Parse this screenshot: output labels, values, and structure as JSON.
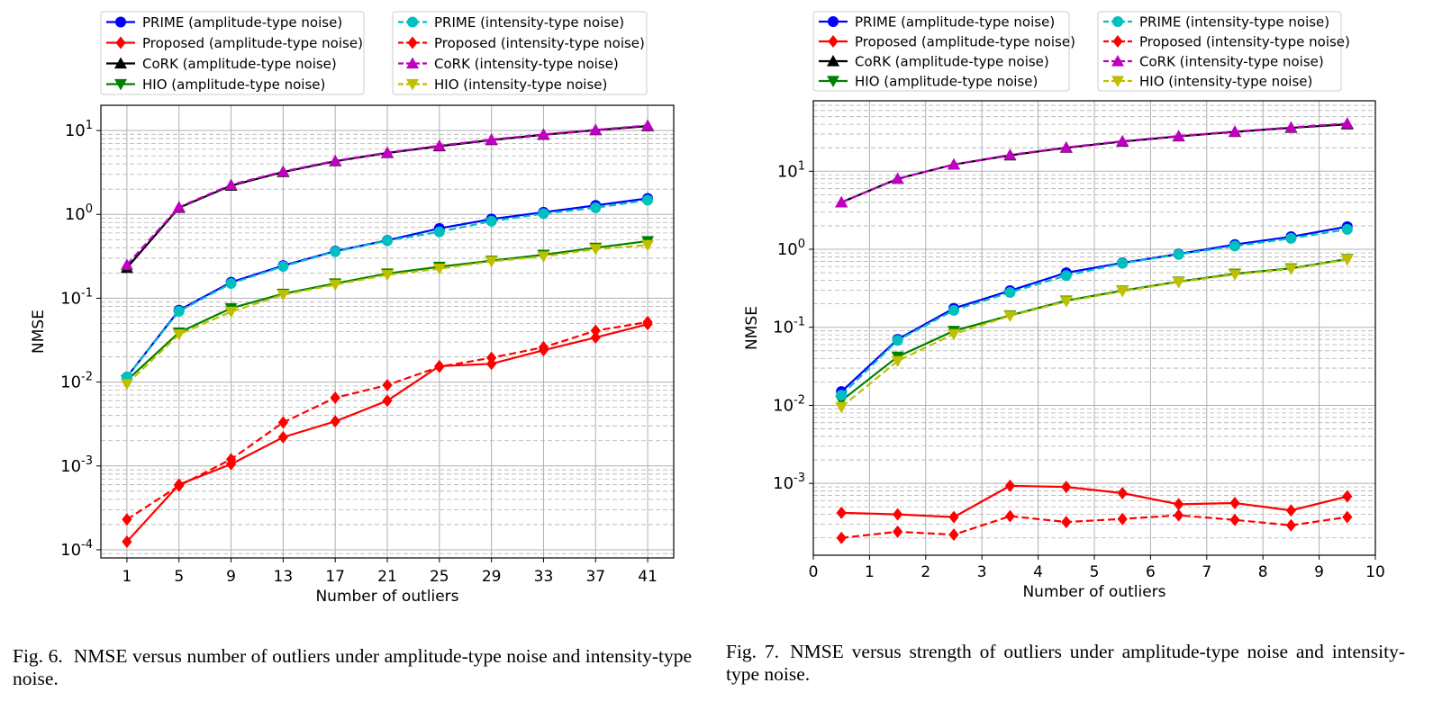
{
  "colors": {
    "prime_amp": "#0000ff",
    "proposed_amp": "#ff0000",
    "cork_amp": "#000000",
    "hio_amp": "#008000",
    "prime_int": "#00bfbf",
    "proposed_int": "#ff0000",
    "cork_int": "#bf00bf",
    "hio_int": "#bfbf00",
    "grid": "#b0b0b0"
  },
  "chart_data": [
    {
      "type": "line",
      "title": "",
      "xlabel": "Number of outliers",
      "ylabel": "NMSE",
      "yscale": "log",
      "ylim": [
        8e-05,
        20
      ],
      "xlim": [
        -0.5,
        10.5
      ],
      "x_categorical": true,
      "categories": [
        "1",
        "5",
        "9",
        "13",
        "17",
        "21",
        "25",
        "29",
        "33",
        "37",
        "41"
      ],
      "ytick_labels": [
        "10^-4",
        "10^-3",
        "10^-2",
        "10^-1",
        "10^0",
        "10^1"
      ],
      "grid": "major and minor",
      "legend_location": "above the plot, two columns",
      "series": [
        {
          "name": "PRIME (amplitude-type noise)",
          "color": "#0000ff",
          "dashed": false,
          "marker": "circle",
          "values": [
            0.0115,
            0.072,
            0.155,
            0.245,
            0.365,
            0.49,
            0.68,
            0.88,
            1.06,
            1.28,
            1.55
          ]
        },
        {
          "name": "Proposed (amplitude-type noise)",
          "color": "#ff0000",
          "dashed": false,
          "marker": "diamond",
          "values": [
            0.000125,
            0.0006,
            0.00105,
            0.0022,
            0.0034,
            0.006,
            0.0155,
            0.0165,
            0.024,
            0.034,
            0.049
          ]
        },
        {
          "name": "CoRK (amplitude-type noise)",
          "color": "#000000",
          "dashed": false,
          "marker": "triangle-up",
          "values": [
            0.23,
            1.2,
            2.2,
            3.2,
            4.3,
            5.4,
            6.5,
            7.7,
            8.9,
            10.1,
            11.3
          ]
        },
        {
          "name": "HIO (amplitude-type noise)",
          "color": "#008000",
          "dashed": false,
          "marker": "triangle-down",
          "values": [
            0.0105,
            0.039,
            0.076,
            0.113,
            0.15,
            0.197,
            0.237,
            0.28,
            0.33,
            0.4,
            0.48
          ]
        },
        {
          "name": "PRIME (intensity-type noise)",
          "color": "#00bfbf",
          "dashed": true,
          "marker": "circle",
          "values": [
            0.0115,
            0.07,
            0.15,
            0.24,
            0.36,
            0.485,
            0.62,
            0.83,
            1.02,
            1.2,
            1.48
          ]
        },
        {
          "name": "Proposed (intensity-type noise)",
          "color": "#ff0000",
          "dashed": true,
          "marker": "diamond",
          "values": [
            0.00023,
            0.00058,
            0.0012,
            0.0033,
            0.0065,
            0.0092,
            0.0152,
            0.0195,
            0.026,
            0.041,
            0.052
          ]
        },
        {
          "name": "CoRK (intensity-type noise)",
          "color": "#bf00bf",
          "dashed": true,
          "marker": "triangle-up",
          "values": [
            0.25,
            1.22,
            2.25,
            3.25,
            4.35,
            5.45,
            6.6,
            7.8,
            9.0,
            10.2,
            11.5
          ]
        },
        {
          "name": "HIO (intensity-type noise)",
          "color": "#bfbf00",
          "dashed": true,
          "marker": "triangle-down",
          "values": [
            0.0095,
            0.037,
            0.069,
            0.11,
            0.145,
            0.19,
            0.225,
            0.275,
            0.315,
            0.385,
            0.43
          ]
        }
      ]
    },
    {
      "type": "line",
      "title": "",
      "xlabel": "Number of outliers",
      "ylabel": "NMSE",
      "yscale": "log",
      "ylim": [
        0.00012,
        80
      ],
      "xlim": [
        0,
        10
      ],
      "x": [
        0.5,
        1.5,
        2.5,
        3.5,
        4.5,
        5.5,
        6.5,
        7.5,
        8.5,
        9.5
      ],
      "xticks": [
        "0",
        "1",
        "2",
        "3",
        "4",
        "5",
        "6",
        "7",
        "8",
        "9",
        "10"
      ],
      "ytick_labels": [
        "10^-3",
        "10^-2",
        "10^-1",
        "10^0",
        "10^1"
      ],
      "grid": "major and minor",
      "legend_location": "above the plot, two columns",
      "series": [
        {
          "name": "PRIME (amplitude-type noise)",
          "color": "#0000ff",
          "dashed": false,
          "marker": "circle",
          "values": [
            0.015,
            0.07,
            0.175,
            0.295,
            0.5,
            0.67,
            0.87,
            1.15,
            1.45,
            1.95
          ]
        },
        {
          "name": "Proposed (amplitude-type noise)",
          "color": "#ff0000",
          "dashed": false,
          "marker": "diamond",
          "values": [
            0.00042,
            0.0004,
            0.00037,
            0.00093,
            0.0009,
            0.00075,
            0.00054,
            0.00056,
            0.00045,
            0.00068
          ]
        },
        {
          "name": "CoRK (amplitude-type noise)",
          "color": "#000000",
          "dashed": false,
          "marker": "triangle-up",
          "values": [
            4.0,
            8.0,
            12.2,
            16.0,
            20.0,
            24.0,
            28.0,
            32.0,
            36.0,
            40.0
          ]
        },
        {
          "name": "HIO (amplitude-type noise)",
          "color": "#008000",
          "dashed": false,
          "marker": "triangle-down",
          "values": [
            0.0115,
            0.042,
            0.09,
            0.142,
            0.22,
            0.295,
            0.385,
            0.485,
            0.57,
            0.75
          ]
        },
        {
          "name": "PRIME (intensity-type noise)",
          "color": "#00bfbf",
          "dashed": true,
          "marker": "circle",
          "values": [
            0.0135,
            0.068,
            0.165,
            0.28,
            0.46,
            0.66,
            0.86,
            1.1,
            1.38,
            1.8
          ]
        },
        {
          "name": "Proposed (intensity-type noise)",
          "color": "#ff0000",
          "dashed": true,
          "marker": "diamond",
          "values": [
            0.0002,
            0.00024,
            0.00022,
            0.00038,
            0.00032,
            0.00035,
            0.00039,
            0.00034,
            0.00029,
            0.00037
          ]
        },
        {
          "name": "CoRK (intensity-type noise)",
          "color": "#bf00bf",
          "dashed": true,
          "marker": "triangle-up",
          "values": [
            4.0,
            8.0,
            12.2,
            16.2,
            20.2,
            24.3,
            28.3,
            32.3,
            36.5,
            41.0
          ]
        },
        {
          "name": "HIO (intensity-type noise)",
          "color": "#bfbf00",
          "dashed": true,
          "marker": "triangle-down",
          "values": [
            0.0095,
            0.037,
            0.082,
            0.14,
            0.215,
            0.29,
            0.38,
            0.475,
            0.56,
            0.74
          ]
        }
      ]
    }
  ],
  "captions": [
    {
      "label": "Fig. 6.",
      "text": "NMSE versus number of outliers under amplitude-type noise and intensity-type noise."
    },
    {
      "label": "Fig. 7.",
      "text": "NMSE versus strength of outliers under amplitude-type noise and intensity-type noise."
    }
  ]
}
